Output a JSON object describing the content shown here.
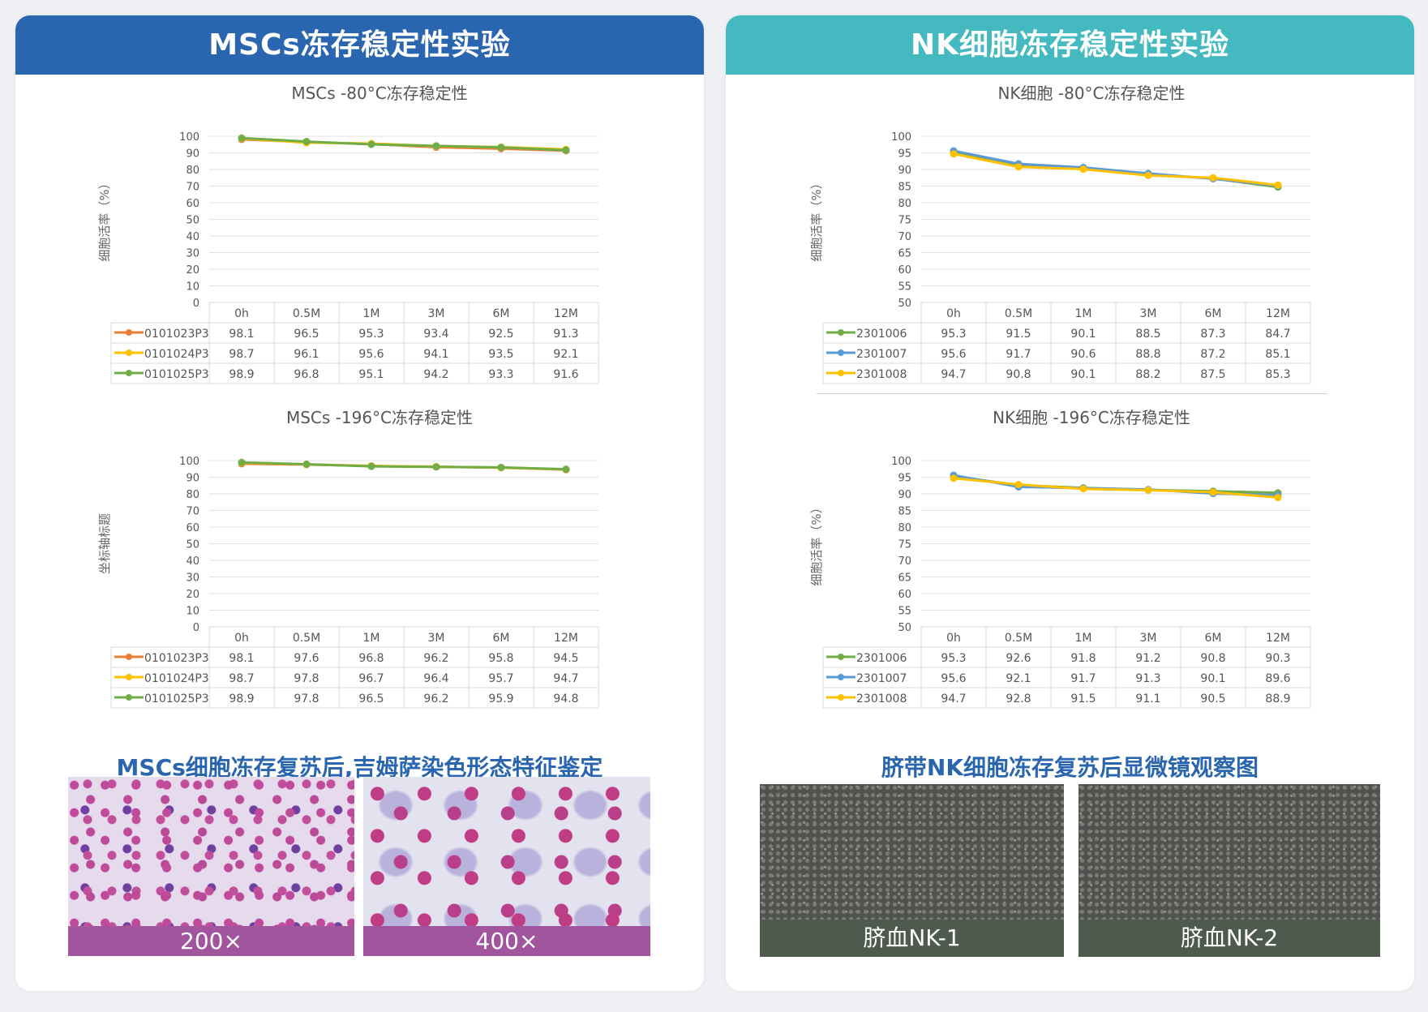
{
  "left_panel": {
    "title": "MSCs冻存稳定性实验",
    "caption": "MSCs细胞冻存复苏后,吉姆萨染色形态特征鉴定",
    "images": [
      {
        "label": "200×"
      },
      {
        "label": "400×"
      }
    ],
    "label_color": "#a0559d"
  },
  "right_panel": {
    "title": "NK细胞冻存稳定性实验",
    "caption": "脐带NK细胞冻存复苏后显微镜观察图",
    "images": [
      {
        "label": "脐血NK-1"
      },
      {
        "label": "脐血NK-2"
      }
    ],
    "label_color": "#4e5a4d"
  },
  "chart_data": [
    {
      "type": "line",
      "title": "MSCs -80°C冻存稳定性",
      "ylabel": "细胞活率（%）",
      "ylim": [
        0,
        100
      ],
      "yticks": [
        0,
        10,
        20,
        30,
        40,
        50,
        60,
        70,
        80,
        90,
        100
      ],
      "categories": [
        "0h",
        "0.5M",
        "1M",
        "3M",
        "6M",
        "12M"
      ],
      "series": [
        {
          "name": "0101023P3",
          "color": "#ed7d31",
          "values": [
            98.1,
            96.5,
            95.3,
            93.4,
            92.5,
            91.3
          ]
        },
        {
          "name": "0101024P3",
          "color": "#ffc000",
          "values": [
            98.7,
            96.1,
            95.6,
            94.1,
            93.5,
            92.1
          ]
        },
        {
          "name": "0101025P3",
          "color": "#70ad47",
          "values": [
            98.9,
            96.8,
            95.1,
            94.2,
            93.3,
            91.6
          ]
        }
      ]
    },
    {
      "type": "line",
      "title": "MSCs -196°C冻存稳定性",
      "ylabel": "坐标轴标题",
      "ylim": [
        0,
        100
      ],
      "yticks": [
        0,
        10,
        20,
        30,
        40,
        50,
        60,
        70,
        80,
        90,
        100
      ],
      "categories": [
        "0h",
        "0.5M",
        "1M",
        "3M",
        "6M",
        "12M"
      ],
      "series": [
        {
          "name": "0101023P3",
          "color": "#ed7d31",
          "values": [
            98.1,
            97.6,
            96.8,
            96.2,
            95.8,
            94.5
          ]
        },
        {
          "name": "0101024P3",
          "color": "#ffc000",
          "values": [
            98.7,
            97.8,
            96.7,
            96.4,
            95.7,
            94.7
          ]
        },
        {
          "name": "0101025P3",
          "color": "#70ad47",
          "values": [
            98.9,
            97.8,
            96.5,
            96.2,
            95.9,
            94.8
          ]
        }
      ]
    },
    {
      "type": "line",
      "title": "NK细胞 -80°C冻存稳定性",
      "ylabel": "细胞活率（%）",
      "ylim": [
        50,
        100
      ],
      "yticks": [
        50,
        55,
        60,
        65,
        70,
        75,
        80,
        85,
        90,
        95,
        100
      ],
      "categories": [
        "0h",
        "0.5M",
        "1M",
        "3M",
        "6M",
        "12M"
      ],
      "series": [
        {
          "name": "2301006",
          "color": "#70ad47",
          "values": [
            95.3,
            91.5,
            90.1,
            88.5,
            87.3,
            84.7
          ]
        },
        {
          "name": "2301007",
          "color": "#5b9bd5",
          "values": [
            95.6,
            91.7,
            90.6,
            88.8,
            87.2,
            85.1
          ]
        },
        {
          "name": "2301008",
          "color": "#ffc000",
          "values": [
            94.7,
            90.8,
            90.1,
            88.2,
            87.5,
            85.3
          ]
        }
      ]
    },
    {
      "type": "line",
      "title": "NK细胞 -196°C冻存稳定性",
      "ylabel": "细胞活率（%）",
      "ylim": [
        50,
        100
      ],
      "yticks": [
        50,
        55,
        60,
        65,
        70,
        75,
        80,
        85,
        90,
        95,
        100
      ],
      "categories": [
        "0h",
        "0.5M",
        "1M",
        "3M",
        "6M",
        "12M"
      ],
      "series": [
        {
          "name": "2301006",
          "color": "#70ad47",
          "values": [
            95.3,
            92.6,
            91.8,
            91.2,
            90.8,
            90.3
          ]
        },
        {
          "name": "2301007",
          "color": "#5b9bd5",
          "values": [
            95.6,
            92.1,
            91.7,
            91.3,
            90.1,
            89.6
          ]
        },
        {
          "name": "2301008",
          "color": "#ffc000",
          "values": [
            94.7,
            92.8,
            91.5,
            91.1,
            90.5,
            88.9
          ]
        }
      ]
    }
  ]
}
